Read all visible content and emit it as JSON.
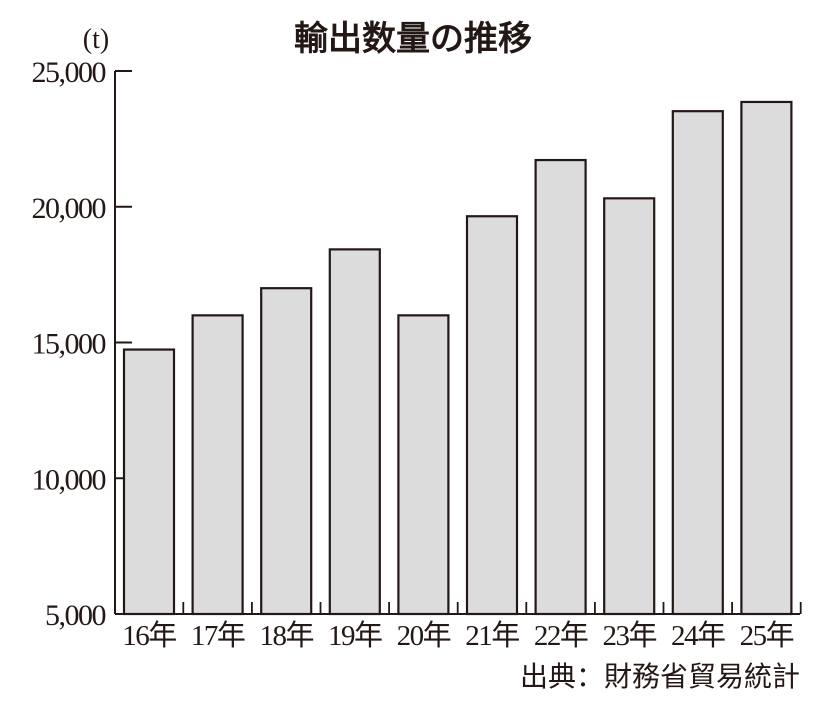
{
  "chart_data": {
    "type": "bar",
    "title": "輸出数量の推移",
    "ylabel": "(t)",
    "xlabel": "",
    "categories": [
      "16年",
      "17年",
      "18年",
      "19年",
      "20年",
      "21年",
      "22年",
      "23年",
      "24年",
      "25年"
    ],
    "values": [
      14740,
      16000,
      17000,
      18430,
      16000,
      19650,
      21720,
      20310,
      23520,
      23860
    ],
    "ylim": [
      5000,
      25000
    ],
    "yticks": [
      5000,
      10000,
      15000,
      20000,
      25000
    ],
    "ytick_labels": [
      "5,000",
      "10,000",
      "15,000",
      "20,000",
      "25,000"
    ],
    "grid": false,
    "legend": null,
    "bar_color": "#dcdcdc",
    "edge_color": "#231815",
    "source": "出典：財務省貿易統計"
  },
  "labels": {
    "title": "輸出数量の推移",
    "unit": "(t)",
    "source": "出典：財務省貿易統計"
  }
}
